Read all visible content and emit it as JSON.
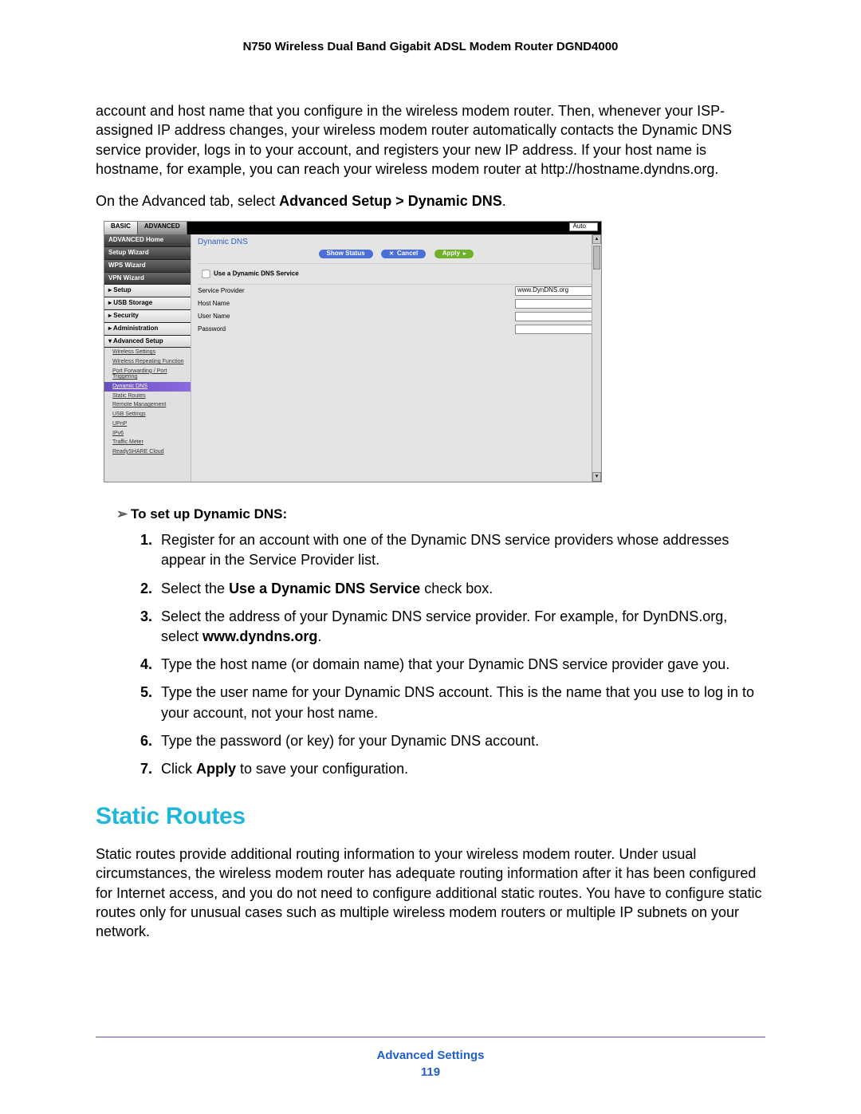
{
  "doc_title": "N750 Wireless Dual Band Gigabit ADSL Modem Router DGND4000",
  "intro_paragraph": "account and host name that you configure in the wireless modem router. Then, whenever your ISP-assigned IP address changes, your wireless modem router automatically contacts the Dynamic DNS service provider, logs in to your account, and registers your new IP address. If your host name is hostname, for example, you can reach your wireless modem router at http://hostname.dyndns.org.",
  "nav_hint_pre": "On the Advanced tab, select ",
  "nav_hint_bold": "Advanced Setup > Dynamic DNS",
  "nav_hint_post": ".",
  "screenshot": {
    "tabs": {
      "basic": "BASIC",
      "advanced": "ADVANCED"
    },
    "auto_label": "Auto",
    "sidebar": {
      "items": [
        "ADVANCED Home",
        "Setup Wizard",
        "WPS Wizard",
        "VPN Wizard"
      ],
      "light_items_pre": [
        "▸ Setup",
        "▸ USB Storage",
        "▸ Security",
        "▸ Administration"
      ],
      "adv_setup": "▾ Advanced Setup",
      "subitems": [
        "Wireless Settings",
        "Wireless Repeating Function",
        "Port Forwarding / Port Triggering",
        "Dynamic DNS",
        "Static Routes",
        "Remote Management",
        "USB Settings",
        "UPnP",
        "IPv6",
        "Traffic Meter",
        "ReadySHARE Cloud"
      ],
      "selected_sub_index": 3
    },
    "panel": {
      "title": "Dynamic DNS",
      "btn_status": "Show Status",
      "btn_cancel": "Cancel",
      "btn_apply": "Apply",
      "checkbox_label": "Use a Dynamic DNS Service",
      "fields": {
        "provider_label": "Service Provider",
        "provider_value": "www.DynDNS.org",
        "host_label": "Host Name",
        "user_label": "User Name",
        "pass_label": "Password"
      }
    }
  },
  "task_heading": "To set up Dynamic DNS:",
  "steps": [
    {
      "text": "Register for an account with one of the Dynamic DNS service providers whose addresses appear in the Service Provider list."
    },
    {
      "pre": "Select the ",
      "bold": "Use a Dynamic DNS Service",
      "post": " check box."
    },
    {
      "pre": "Select the address of your Dynamic DNS service provider. For example, for DynDNS.org, select ",
      "bold": "www.dyndns.org",
      "post": "."
    },
    {
      "text": "Type the host name (or domain name) that your Dynamic DNS service provider gave you."
    },
    {
      "text": "Type the user name for your Dynamic DNS account. This is the name that you use to log in to your account, not your host name."
    },
    {
      "text": "Type the password (or key) for your Dynamic DNS account."
    },
    {
      "pre": "Click ",
      "bold": "Apply",
      "post": " to save your configuration."
    }
  ],
  "section_heading": "Static Routes",
  "static_paragraph": "Static routes provide additional routing information to your wireless modem router. Under usual circumstances, the wireless modem router has adequate routing information after it has been configured for Internet access, and you do not need to configure additional static routes. You have to configure static routes only for unusual cases such as multiple wireless modem routers or multiple IP subnets on your network.",
  "footer": {
    "chapter": "Advanced Settings",
    "page": "119"
  }
}
